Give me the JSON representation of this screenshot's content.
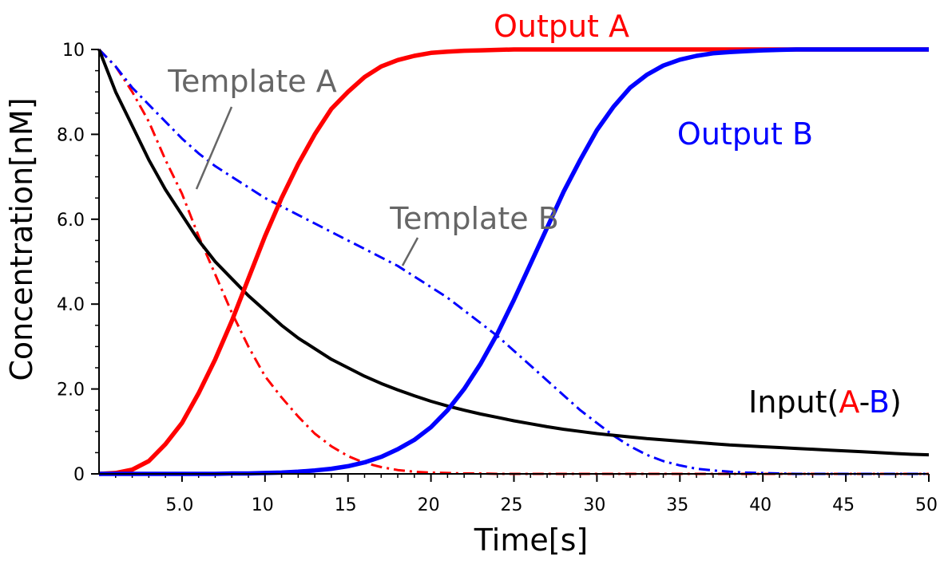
{
  "chart_data": {
    "type": "line",
    "xlabel": "Time[s]",
    "ylabel": "Concentration[nM]",
    "xlim": [
      0,
      50
    ],
    "ylim": [
      0,
      10
    ],
    "x_ticks": [
      {
        "value": 5,
        "label": "5.0"
      },
      {
        "value": 10,
        "label": "10"
      },
      {
        "value": 15,
        "label": "15"
      },
      {
        "value": 20,
        "label": "20"
      },
      {
        "value": 25,
        "label": "25"
      },
      {
        "value": 30,
        "label": "30"
      },
      {
        "value": 35,
        "label": "35"
      },
      {
        "value": 40,
        "label": "40"
      },
      {
        "value": 45,
        "label": "45"
      },
      {
        "value": 50,
        "label": "50"
      }
    ],
    "y_ticks": [
      {
        "value": 0,
        "label": "0"
      },
      {
        "value": 2,
        "label": "2.0"
      },
      {
        "value": 4,
        "label": "4.0"
      },
      {
        "value": 6,
        "label": "6.0"
      },
      {
        "value": 8,
        "label": "8.0"
      },
      {
        "value": 10,
        "label": "10"
      }
    ],
    "grid": false,
    "x": [
      0,
      1,
      2,
      3,
      4,
      5,
      6,
      7,
      8,
      9,
      10,
      11,
      12,
      13,
      14,
      15,
      16,
      17,
      18,
      19,
      20,
      21,
      22,
      23,
      24,
      25,
      26,
      27,
      28,
      29,
      30,
      31,
      32,
      33,
      34,
      35,
      36,
      37,
      38,
      39,
      40,
      41,
      42,
      43,
      44,
      45,
      46,
      47,
      48,
      49,
      50
    ],
    "series": [
      {
        "key": "template_a",
        "color": "#ff0000",
        "style": "dashdot",
        "values": [
          10,
          9.6,
          9.0,
          8.3,
          7.4,
          6.6,
          5.6,
          4.7,
          3.8,
          3.0,
          2.3,
          1.8,
          1.35,
          0.95,
          0.65,
          0.42,
          0.26,
          0.16,
          0.09,
          0.05,
          0.03,
          0.02,
          0.01,
          0.01,
          0,
          0,
          0,
          0,
          0,
          0,
          0,
          0,
          0,
          0,
          0,
          0,
          0,
          0,
          0,
          0,
          0,
          0,
          0,
          0,
          0,
          0,
          0,
          0,
          0,
          0,
          0
        ]
      },
      {
        "key": "template_b",
        "color": "#0000ff",
        "style": "dashdot",
        "values": [
          10,
          9.6,
          9.1,
          8.7,
          8.3,
          7.9,
          7.55,
          7.25,
          7.0,
          6.75,
          6.5,
          6.3,
          6.1,
          5.9,
          5.7,
          5.5,
          5.3,
          5.1,
          4.9,
          4.65,
          4.4,
          4.15,
          3.85,
          3.55,
          3.25,
          2.9,
          2.55,
          2.2,
          1.85,
          1.5,
          1.2,
          0.9,
          0.65,
          0.45,
          0.3,
          0.2,
          0.12,
          0.08,
          0.05,
          0.03,
          0.02,
          0.01,
          0,
          0,
          0,
          0,
          0,
          0,
          0,
          0,
          0
        ]
      },
      {
        "key": "input",
        "color": "#000000",
        "style": "solid",
        "values": [
          10,
          9.0,
          8.2,
          7.4,
          6.7,
          6.1,
          5.5,
          5.0,
          4.6,
          4.2,
          3.85,
          3.5,
          3.2,
          2.95,
          2.7,
          2.5,
          2.3,
          2.13,
          1.98,
          1.84,
          1.71,
          1.6,
          1.5,
          1.41,
          1.33,
          1.25,
          1.18,
          1.11,
          1.05,
          1.0,
          0.95,
          0.91,
          0.87,
          0.83,
          0.8,
          0.77,
          0.74,
          0.71,
          0.68,
          0.66,
          0.64,
          0.62,
          0.6,
          0.58,
          0.56,
          0.54,
          0.52,
          0.5,
          0.48,
          0.46,
          0.45
        ]
      },
      {
        "key": "output_a",
        "color": "#ff0000",
        "style": "solid",
        "values": [
          0,
          0.02,
          0.1,
          0.3,
          0.7,
          1.2,
          1.9,
          2.7,
          3.6,
          4.6,
          5.6,
          6.5,
          7.3,
          8.0,
          8.6,
          9.0,
          9.35,
          9.6,
          9.75,
          9.85,
          9.92,
          9.95,
          9.97,
          9.98,
          9.99,
          10,
          10,
          10,
          10,
          10,
          10,
          10,
          10,
          10,
          10,
          10,
          10,
          10,
          10,
          10,
          10,
          10,
          10,
          10,
          10,
          10,
          10,
          10,
          10,
          10,
          10
        ]
      },
      {
        "key": "output_b",
        "color": "#0000ff",
        "style": "solid",
        "values": [
          0,
          0,
          0,
          0,
          0,
          0,
          0,
          0,
          0.01,
          0.01,
          0.02,
          0.03,
          0.05,
          0.08,
          0.12,
          0.18,
          0.27,
          0.4,
          0.58,
          0.8,
          1.1,
          1.5,
          2.0,
          2.6,
          3.3,
          4.1,
          4.95,
          5.8,
          6.65,
          7.4,
          8.1,
          8.65,
          9.1,
          9.4,
          9.62,
          9.76,
          9.85,
          9.91,
          9.94,
          9.96,
          9.98,
          9.99,
          10,
          10,
          10,
          10,
          10,
          10,
          10,
          10,
          10
        ]
      }
    ],
    "annotations": {
      "output_a": {
        "text": "Output A",
        "color": "#ff0000"
      },
      "output_b": {
        "text": "Output B",
        "color": "#0000ff"
      },
      "template_a": {
        "text": "Template A",
        "color": "#666666"
      },
      "template_b": {
        "text": "Template B",
        "color": "#666666"
      },
      "input": {
        "prefix": "Input(",
        "part_a": "A",
        "dash": "-",
        "part_b": "B",
        "suffix": ")",
        "color": "#000000",
        "color_a": "#ff0000",
        "color_b": "#0000ff"
      }
    }
  }
}
